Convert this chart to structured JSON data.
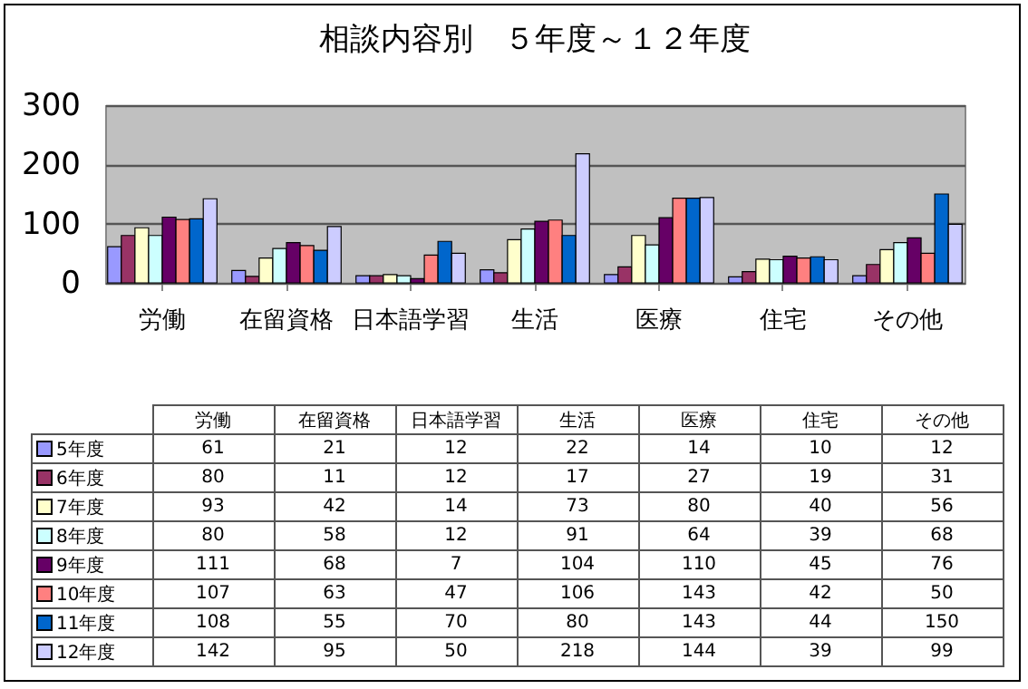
{
  "chart_data": {
    "type": "bar",
    "title": "相談内容別　５年度～１２年度",
    "categories": [
      "労働",
      "在留資格",
      "日本語学習",
      "生活",
      "医療",
      "住宅",
      "その他"
    ],
    "series": [
      {
        "name": "5年度",
        "color": "#9999ff",
        "values": [
          61,
          21,
          12,
          22,
          14,
          10,
          12
        ]
      },
      {
        "name": "6年度",
        "color": "#993366",
        "values": [
          80,
          11,
          12,
          17,
          27,
          19,
          31
        ]
      },
      {
        "name": "7年度",
        "color": "#ffffcc",
        "values": [
          93,
          42,
          14,
          73,
          80,
          40,
          56
        ]
      },
      {
        "name": "8年度",
        "color": "#ccffff",
        "values": [
          80,
          58,
          12,
          91,
          64,
          39,
          68
        ]
      },
      {
        "name": "9年度",
        "color": "#660066",
        "values": [
          111,
          68,
          7,
          104,
          110,
          45,
          76
        ]
      },
      {
        "name": "10年度",
        "color": "#ff8080",
        "values": [
          107,
          63,
          47,
          106,
          143,
          42,
          50
        ]
      },
      {
        "name": "11年度",
        "color": "#0066cc",
        "values": [
          108,
          55,
          70,
          80,
          143,
          44,
          150
        ]
      },
      {
        "name": "12年度",
        "color": "#ccccff",
        "values": [
          142,
          95,
          50,
          218,
          144,
          39,
          99
        ]
      }
    ],
    "ylim": [
      0,
      300
    ],
    "yticks": [
      0,
      100,
      200,
      300
    ],
    "grid": "y",
    "legend": "bottom",
    "data_labels": true
  }
}
